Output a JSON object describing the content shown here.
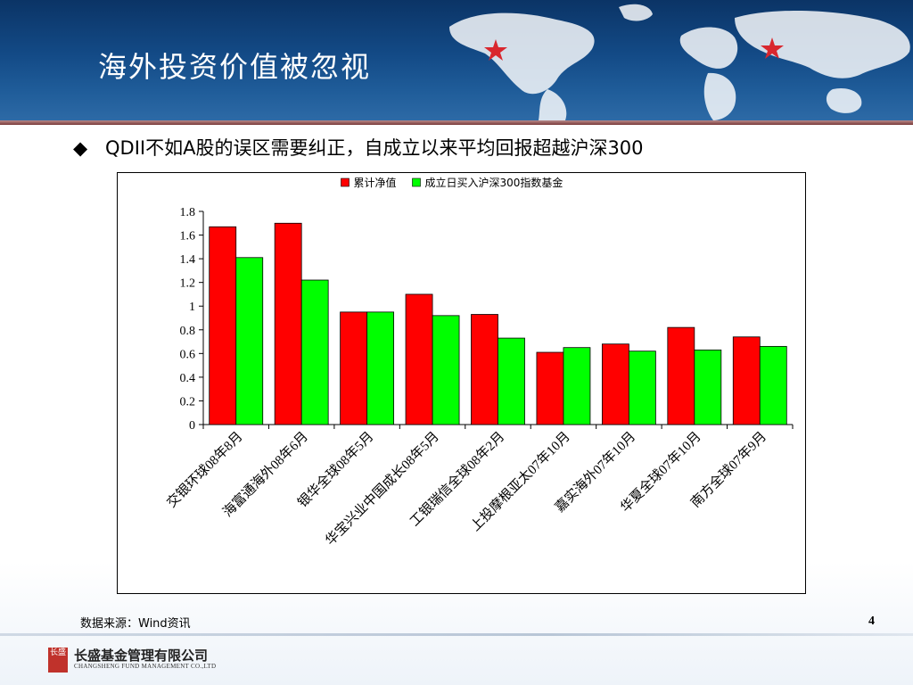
{
  "slide": {
    "title": "海外投资价值被忽视",
    "bullet_symbol": "◆",
    "bullet_text": "QDII不如A股的误区需要纠正，自成立以来平均回报超越沪深300",
    "footnote": "数据来源：Wind资讯",
    "page_number": "4"
  },
  "footer": {
    "logo_glyphs": "长盛",
    "company_cn": "长盛基金管理有限公司",
    "company_en": "CHANGSHENG FUND MANAGEMENT CO.,LTD"
  },
  "colors": {
    "series_1": "#ff0000",
    "series_2": "#00ff00",
    "header_bg": "#134a86",
    "star": "#d9272e"
  },
  "chart_data": {
    "type": "bar",
    "title": "",
    "xlabel": "",
    "ylabel": "",
    "categories": [
      "交银环球08年8月",
      "海富通海外08年6月",
      "银华全球08年5月",
      "华宝兴业中国成长08年5月",
      "工银瑞信全球08年2月",
      "上投摩根亚太07年10月",
      "嘉实海外07年10月",
      "华夏全球07年10月",
      "南方全球07年9月"
    ],
    "series": [
      {
        "name": "累计净值",
        "values": [
          1.67,
          1.7,
          0.95,
          1.1,
          0.93,
          0.61,
          0.68,
          0.82,
          0.74
        ]
      },
      {
        "name": "成立日买入沪深300指数基金",
        "values": [
          1.41,
          1.22,
          0.95,
          0.92,
          0.73,
          0.65,
          0.62,
          0.63,
          0.66
        ]
      }
    ],
    "ylim": [
      0,
      1.8
    ],
    "yticks": [
      "0",
      "0.2",
      "0.4",
      "0.6",
      "0.8",
      "1",
      "1.2",
      "1.4",
      "1.6",
      "1.8"
    ],
    "legend_position": "top",
    "grid": false
  }
}
